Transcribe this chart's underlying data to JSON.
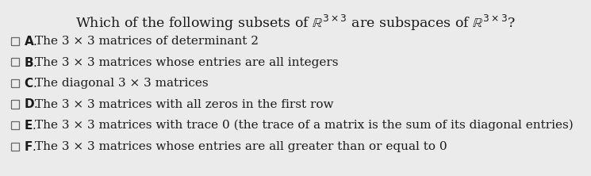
{
  "title_plain": "Which of the following subsets of ",
  "title_math1": "$\\mathbb{R}^{3\\times 3}$",
  "title_mid": " are subspaces of ",
  "title_math2": "$\\mathbb{R}^{3\\times 3}$",
  "title_end": "?",
  "options": [
    {
      "label": "A",
      "text": "The 3 × 3 matrices of determinant 2"
    },
    {
      "label": "B",
      "text": "The 3 × 3 matrices whose entries are all integers"
    },
    {
      "label": "C",
      "text": "The diagonal 3 × 3 matrices"
    },
    {
      "label": "D",
      "text": "The 3 × 3 matrices with all zeros in the first row"
    },
    {
      "label": "E",
      "text": "The 3 × 3 matrices with trace 0 (the trace of a matrix is the sum of its diagonal entries)"
    },
    {
      "label": "F",
      "text": "The 3 × 3 matrices whose entries are all greater than or equal to 0"
    }
  ],
  "bg_color": "#ebebeb",
  "text_color": "#1a1a1a",
  "label_color": "#1a1a1a",
  "font_size_title": 12.5,
  "font_size_options": 11.0,
  "checkbox_color": "#666666"
}
